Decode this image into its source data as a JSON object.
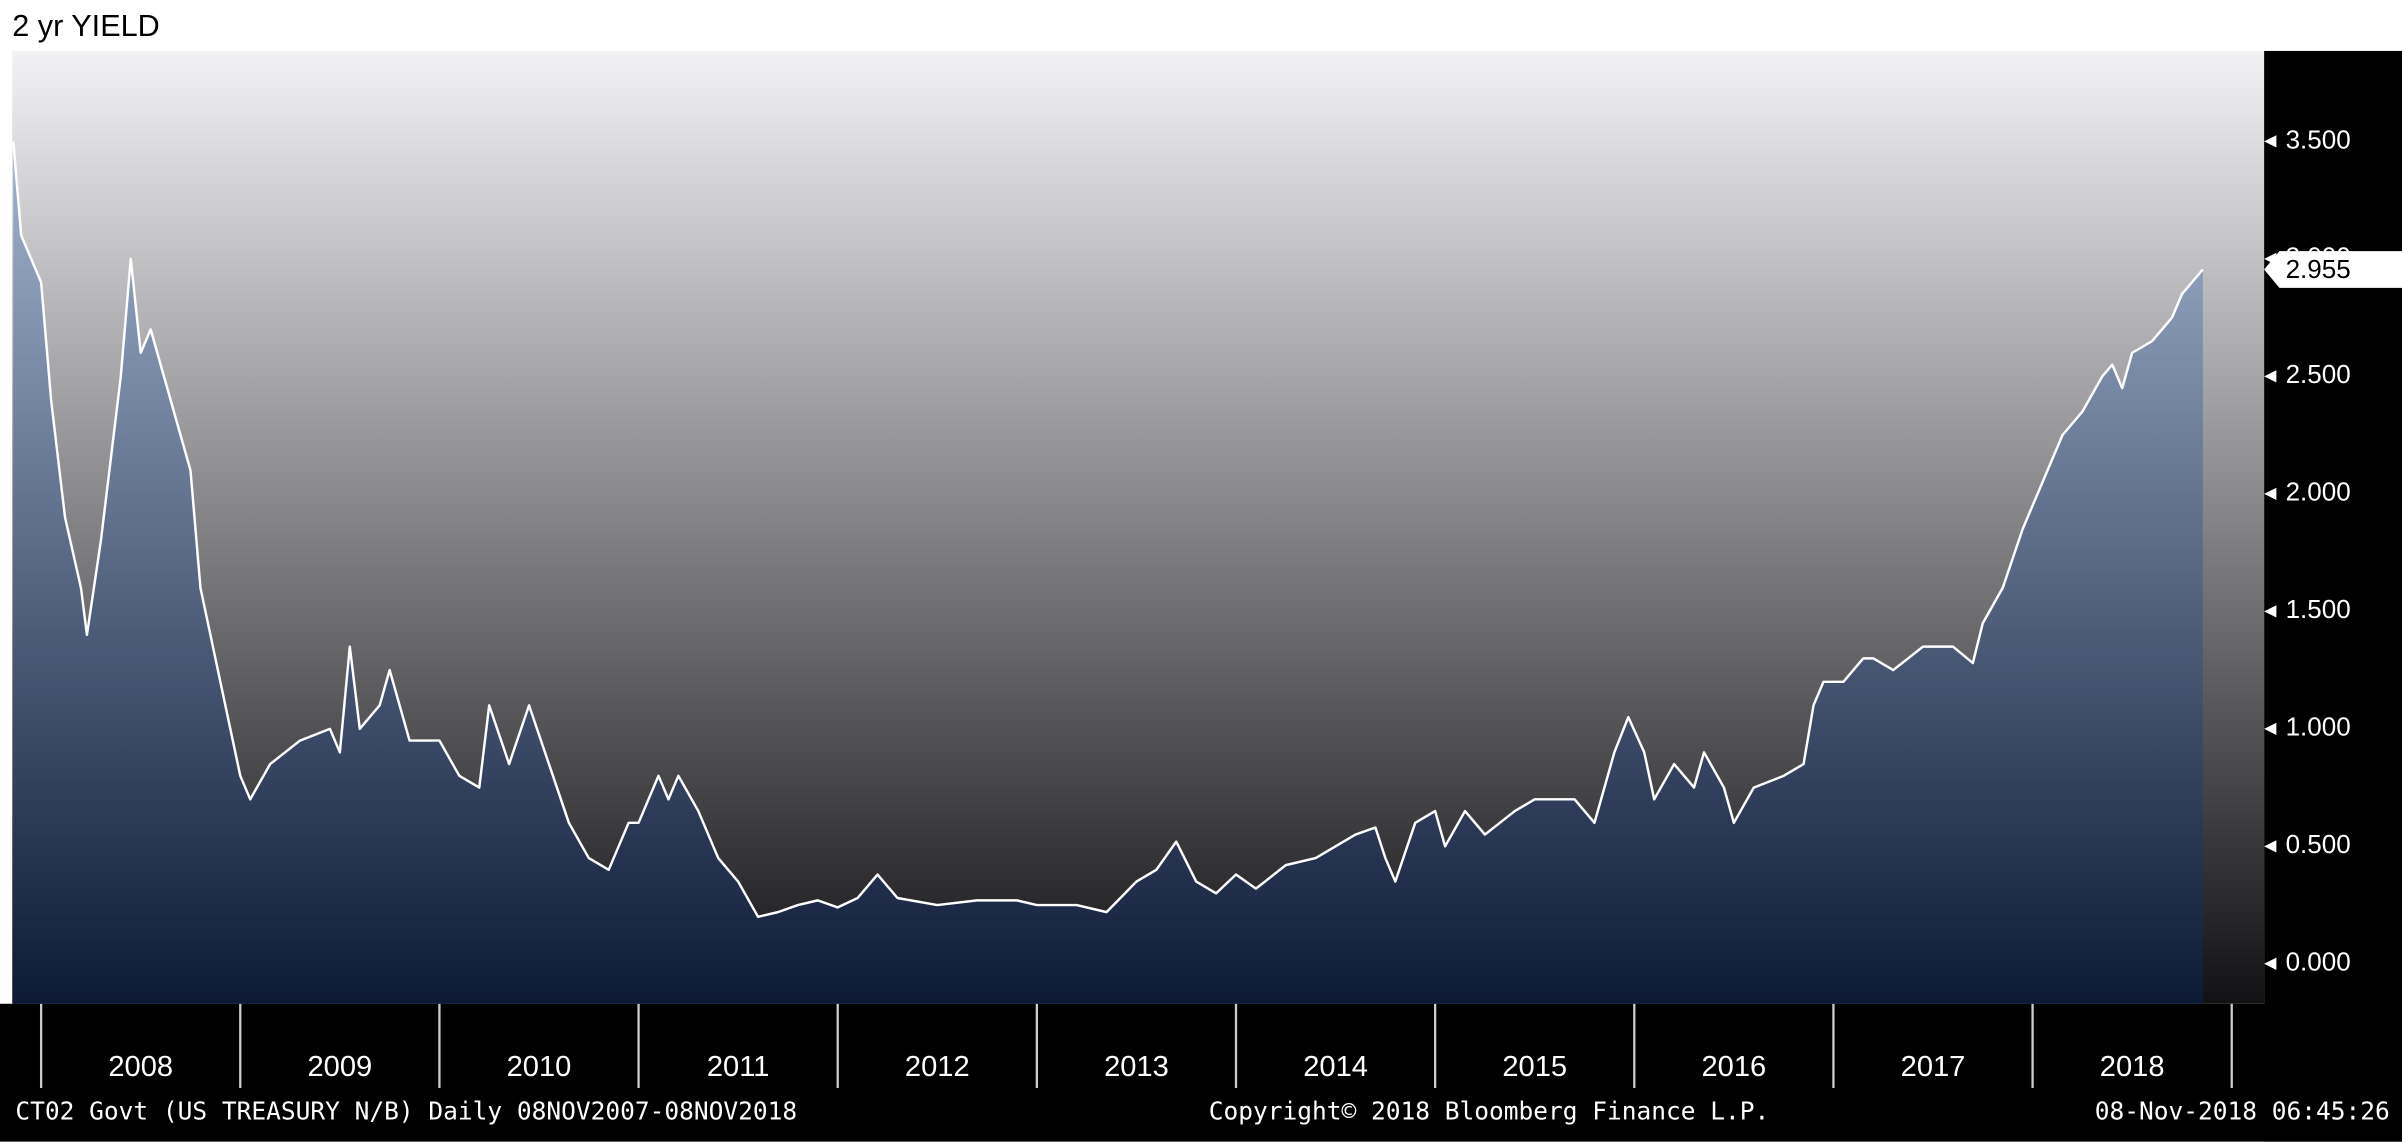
{
  "chart_data": {
    "type": "area",
    "title": "2 yr YIELD",
    "footer_left": "CT02 Govt (US TREASURY N/B)  Daily 08NOV2007-08NOV2018",
    "footer_center": "Copyright© 2018 Bloomberg Finance L.P.",
    "footer_right": "08-Nov-2018 06:45:26",
    "series": [
      {
        "color": "#ffffff",
        "fill_top": "#a4b7d2",
        "fill_bottom": "#0c1937",
        "x": [
          2007.86,
          2007.9,
          2008.0,
          2008.05,
          2008.12,
          2008.2,
          2008.23,
          2008.3,
          2008.4,
          2008.45,
          2008.5,
          2008.55,
          2008.65,
          2008.75,
          2008.8,
          2008.9,
          2009.0,
          2009.05,
          2009.15,
          2009.3,
          2009.45,
          2009.5,
          2009.55,
          2009.6,
          2009.7,
          2009.75,
          2009.85,
          2010.0,
          2010.1,
          2010.2,
          2010.25,
          2010.35,
          2010.45,
          2010.55,
          2010.65,
          2010.75,
          2010.85,
          2010.95,
          2011.0,
          2011.1,
          2011.15,
          2011.2,
          2011.3,
          2011.4,
          2011.5,
          2011.6,
          2011.7,
          2011.8,
          2011.9,
          2012.0,
          2012.1,
          2012.2,
          2012.3,
          2012.5,
          2012.7,
          2012.9,
          2013.0,
          2013.2,
          2013.35,
          2013.5,
          2013.6,
          2013.7,
          2013.8,
          2013.9,
          2014.0,
          2014.1,
          2014.25,
          2014.4,
          2014.5,
          2014.6,
          2014.7,
          2014.75,
          2014.8,
          2014.9,
          2015.0,
          2015.05,
          2015.15,
          2015.25,
          2015.4,
          2015.5,
          2015.7,
          2015.8,
          2015.9,
          2015.97,
          2016.05,
          2016.1,
          2016.2,
          2016.3,
          2016.35,
          2016.45,
          2016.5,
          2016.6,
          2016.75,
          2016.85,
          2016.9,
          2016.95,
          2017.05,
          2017.15,
          2017.2,
          2017.3,
          2017.45,
          2017.6,
          2017.7,
          2017.75,
          2017.85,
          2017.95,
          2018.05,
          2018.15,
          2018.25,
          2018.35,
          2018.4,
          2018.45,
          2018.5,
          2018.6,
          2018.7,
          2018.75,
          2018.855
        ],
        "values": [
          3.5,
          3.1,
          2.9,
          2.4,
          1.9,
          1.6,
          1.4,
          1.8,
          2.5,
          3.0,
          2.6,
          2.7,
          2.4,
          2.1,
          1.6,
          1.2,
          0.8,
          0.7,
          0.85,
          0.95,
          1.0,
          0.9,
          1.35,
          1.0,
          1.1,
          1.25,
          0.95,
          0.95,
          0.8,
          0.75,
          1.1,
          0.85,
          1.1,
          0.85,
          0.6,
          0.45,
          0.4,
          0.6,
          0.6,
          0.8,
          0.7,
          0.8,
          0.65,
          0.45,
          0.35,
          0.2,
          0.22,
          0.25,
          0.27,
          0.24,
          0.28,
          0.38,
          0.28,
          0.25,
          0.27,
          0.27,
          0.25,
          0.25,
          0.22,
          0.35,
          0.4,
          0.52,
          0.35,
          0.3,
          0.38,
          0.32,
          0.42,
          0.45,
          0.5,
          0.55,
          0.58,
          0.45,
          0.35,
          0.6,
          0.65,
          0.5,
          0.65,
          0.55,
          0.65,
          0.7,
          0.7,
          0.6,
          0.9,
          1.05,
          0.9,
          0.7,
          0.85,
          0.75,
          0.9,
          0.75,
          0.6,
          0.75,
          0.8,
          0.85,
          1.1,
          1.2,
          1.2,
          1.3,
          1.3,
          1.25,
          1.35,
          1.35,
          1.28,
          1.45,
          1.6,
          1.85,
          2.05,
          2.25,
          2.35,
          2.5,
          2.55,
          2.45,
          2.6,
          2.65,
          2.75,
          2.85,
          2.955
        ]
      }
    ],
    "xlim": [
      2007.855,
      2018.855
    ],
    "xticks": [
      {
        "value": 2008.5,
        "label": "2008"
      },
      {
        "value": 2009.5,
        "label": "2009"
      },
      {
        "value": 2010.5,
        "label": "2010"
      },
      {
        "value": 2011.5,
        "label": "2011"
      },
      {
        "value": 2012.5,
        "label": "2012"
      },
      {
        "value": 2013.5,
        "label": "2013"
      },
      {
        "value": 2014.5,
        "label": "2014"
      },
      {
        "value": 2015.5,
        "label": "2015"
      },
      {
        "value": 2016.5,
        "label": "2016"
      },
      {
        "value": 2017.5,
        "label": "2017"
      },
      {
        "value": 2018.5,
        "label": "2018"
      }
    ],
    "ylim": [
      -0.17,
      3.885
    ],
    "yticks": [
      {
        "value": 0,
        "label": "0.000"
      },
      {
        "value": 0.5,
        "label": "0.500"
      },
      {
        "value": 1,
        "label": "1.000"
      },
      {
        "value": 1.5,
        "label": "1.500"
      },
      {
        "value": 2,
        "label": "2.000"
      },
      {
        "value": 2.5,
        "label": "2.500"
      },
      {
        "value": 3,
        "label": "3.000"
      },
      {
        "value": 3.5,
        "label": "3.500"
      }
    ],
    "background_top": "#f2f2f4",
    "background_bottom": "#121215"
  }
}
